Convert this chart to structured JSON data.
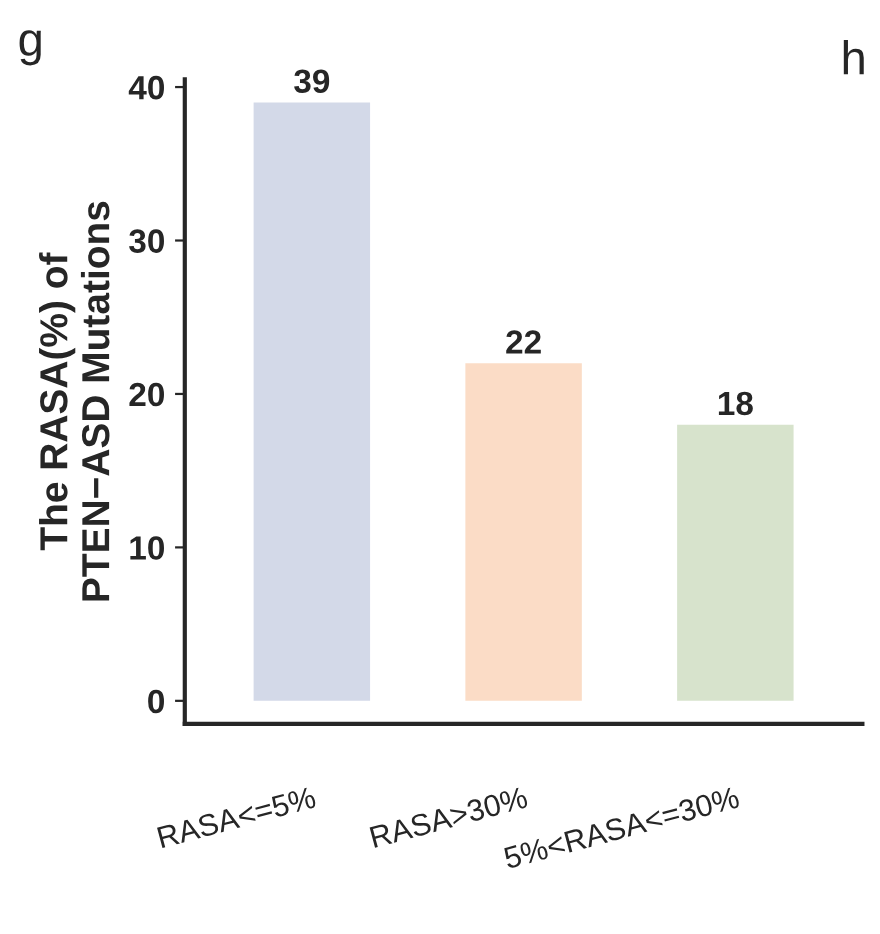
{
  "chart_data": {
    "type": "bar",
    "ylabel": "The RASA(%) of\nPTEN−ASD Mutations",
    "categories": [
      "RASA<=5%",
      "RASA>30%",
      "5%<RASA<=30%"
    ],
    "values": [
      39,
      22,
      18
    ],
    "colors": [
      "#d3d9e8",
      "#fbdcc6",
      "#d7e3cc"
    ],
    "ylim": [
      -1.5,
      40.5
    ],
    "yticks": [
      0,
      10,
      20,
      30,
      40
    ],
    "data_labels": true,
    "grid": false,
    "annotations": [
      "g",
      "h"
    ]
  }
}
